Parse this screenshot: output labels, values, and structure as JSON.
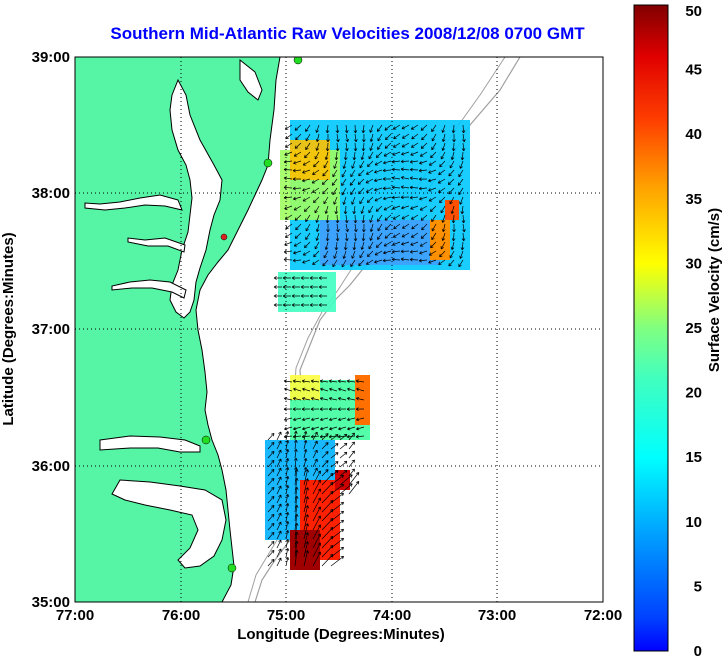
{
  "title": "Southern Mid-Atlantic Raw Velocities 2008/12/08 0700 GMT",
  "axes": {
    "xlabel": "Longitude (Degrees:Minutes)",
    "ylabel": "Latitude (Degrees:Minutes)",
    "x_ticks": [
      "77:00",
      "76:00",
      "75:00",
      "74:00",
      "73:00",
      "72:00"
    ],
    "y_ticks": [
      "39:00",
      "38:00",
      "37:00",
      "36:00",
      "35:00"
    ],
    "grid": "dotted"
  },
  "colorbar": {
    "label": "Surface Velocity (cm/s)",
    "ticks": [
      "0",
      "5",
      "10",
      "15",
      "20",
      "25",
      "30",
      "35",
      "40",
      "45",
      "50"
    ],
    "range": [
      0,
      50
    ],
    "colormap": "jet"
  },
  "colors": {
    "land": "#55f5a5",
    "water": "#ffffff",
    "coastline": "#000000",
    "bathymetry": "#a0a0a0",
    "title": "#0000ff",
    "station": "#22dd22",
    "station_alt": "#dd2222"
  }
}
